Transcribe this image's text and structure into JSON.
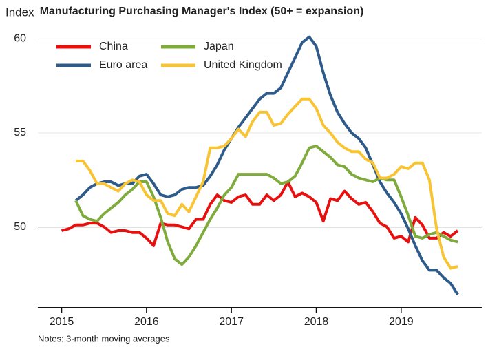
{
  "chart_data": {
    "type": "line",
    "title": "Manufacturing Purchasing Manager's Index (50+ = expansion)",
    "y_label": "Index",
    "note": "Notes: 3-month moving averages",
    "x": [
      2015,
      2015.083,
      2015.167,
      2015.25,
      2015.333,
      2015.417,
      2015.5,
      2015.583,
      2015.667,
      2015.75,
      2015.833,
      2015.917,
      2016,
      2016.083,
      2016.167,
      2016.25,
      2016.333,
      2016.417,
      2016.5,
      2016.583,
      2016.667,
      2016.75,
      2016.833,
      2016.917,
      2017,
      2017.083,
      2017.167,
      2017.25,
      2017.333,
      2017.417,
      2017.5,
      2017.583,
      2017.667,
      2017.75,
      2017.833,
      2017.917,
      2018,
      2018.083,
      2018.167,
      2018.25,
      2018.333,
      2018.417,
      2018.5,
      2018.583,
      2018.667,
      2018.75,
      2018.833,
      2018.917,
      2019,
      2019.083,
      2019.167,
      2019.25,
      2019.333,
      2019.417,
      2019.5,
      2019.583,
      2019.667
    ],
    "series": [
      {
        "name": "China",
        "color": "#e8100f",
        "values": [
          49.8,
          49.9,
          50.1,
          50.1,
          50.2,
          50.2,
          50.0,
          49.7,
          49.8,
          49.8,
          49.7,
          49.7,
          49.4,
          49.0,
          50.2,
          50.1,
          50.1,
          50.0,
          49.9,
          50.4,
          50.4,
          51.2,
          51.7,
          51.4,
          51.3,
          51.6,
          51.7,
          51.2,
          51.2,
          51.7,
          51.4,
          51.7,
          52.4,
          51.6,
          51.8,
          51.6,
          51.3,
          50.3,
          51.5,
          51.4,
          51.9,
          51.5,
          51.2,
          51.3,
          50.8,
          50.2,
          50.0,
          49.4,
          49.5,
          49.2,
          50.5,
          50.1,
          49.4,
          49.4,
          49.7,
          49.5,
          49.8
        ]
      },
      {
        "name": "Euro area",
        "color": "#2e5b8a",
        "values": [
          null,
          null,
          51.4,
          51.7,
          52.1,
          52.3,
          52.4,
          52.4,
          52.2,
          52.3,
          52.3,
          52.7,
          52.8,
          52.3,
          51.7,
          51.6,
          51.7,
          52.0,
          52.1,
          52.1,
          52.2,
          52.7,
          53.3,
          54.1,
          54.7,
          55.3,
          55.8,
          56.3,
          56.8,
          57.1,
          57.1,
          57.4,
          58.2,
          59.0,
          59.8,
          60.1,
          59.6,
          58.2,
          57.0,
          56.1,
          55.5,
          55.0,
          54.7,
          54.2,
          53.3,
          52.4,
          51.8,
          51.3,
          50.7,
          49.9,
          49.0,
          48.2,
          47.7,
          47.7,
          47.3,
          47.0,
          46.4
        ]
      },
      {
        "name": "Japan",
        "color": "#7fab3c",
        "values": [
          null,
          null,
          51.4,
          50.6,
          50.4,
          50.3,
          50.7,
          51.0,
          51.3,
          51.7,
          52.0,
          52.4,
          52.4,
          51.6,
          50.5,
          49.2,
          48.3,
          48.0,
          48.4,
          49.0,
          49.7,
          50.4,
          51.0,
          51.7,
          52.1,
          52.8,
          52.8,
          52.8,
          52.8,
          52.8,
          52.6,
          52.3,
          52.4,
          52.7,
          53.4,
          54.2,
          54.3,
          54.0,
          53.7,
          53.3,
          53.2,
          52.8,
          52.6,
          52.5,
          52.4,
          52.6,
          52.5,
          52.5,
          51.6,
          50.6,
          49.5,
          49.4,
          49.6,
          49.7,
          49.5,
          49.3,
          49.2
        ]
      },
      {
        "name": "United Kingdom",
        "color": "#f8c433",
        "values": [
          null,
          null,
          53.5,
          53.5,
          53.0,
          52.3,
          52.3,
          52.1,
          51.9,
          52.3,
          52.5,
          52.4,
          51.7,
          51.4,
          51.4,
          50.7,
          50.6,
          51.2,
          50.8,
          51.6,
          52.4,
          54.2,
          54.2,
          54.3,
          54.7,
          55.2,
          54.8,
          55.6,
          56.1,
          56.1,
          55.4,
          55.5,
          56.0,
          56.4,
          56.8,
          56.8,
          56.3,
          55.4,
          55.0,
          54.5,
          54.2,
          54.0,
          54.0,
          53.6,
          53.4,
          52.6,
          52.6,
          52.8,
          53.2,
          53.1,
          53.4,
          53.4,
          52.5,
          49.9,
          48.4,
          47.8,
          47.9
        ]
      }
    ],
    "xlim": [
      2014.72,
      2019.95
    ],
    "xticks": [
      2015,
      2016,
      2017,
      2018,
      2019
    ],
    "ylim": [
      45.7,
      60.6
    ],
    "yticks": [
      50,
      55,
      60
    ],
    "reference_line": 50,
    "grid": true,
    "legend": "top-left"
  }
}
